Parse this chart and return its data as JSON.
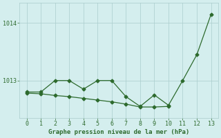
{
  "x_main": [
    0,
    1,
    2,
    3,
    4,
    5,
    6,
    7,
    8,
    9,
    10,
    11,
    12,
    13
  ],
  "y_main": [
    1012.8,
    1012.8,
    1013.0,
    1013.0,
    1012.85,
    1013.0,
    1013.0,
    1012.72,
    1012.55,
    1012.75,
    1012.57,
    1013.0,
    1013.45,
    1014.15
  ],
  "x_flat": [
    0,
    1,
    2,
    3,
    4,
    5,
    6,
    7,
    8,
    9,
    10
  ],
  "y_flat": [
    1012.78,
    1012.77,
    1012.74,
    1012.72,
    1012.69,
    1012.66,
    1012.63,
    1012.59,
    1012.54,
    1012.54,
    1012.55
  ],
  "yticks": [
    1013,
    1014
  ],
  "xticks": [
    0,
    1,
    2,
    3,
    4,
    5,
    6,
    7,
    8,
    9,
    10,
    11,
    12,
    13
  ],
  "xlabel": "Graphe pression niveau de la mer (hPa)",
  "line_color": "#2d6a2d",
  "bg_color": "#d4eeee",
  "grid_color": "#aacccc",
  "ylim": [
    1012.35,
    1014.35
  ],
  "xlim": [
    -0.5,
    13.5
  ]
}
